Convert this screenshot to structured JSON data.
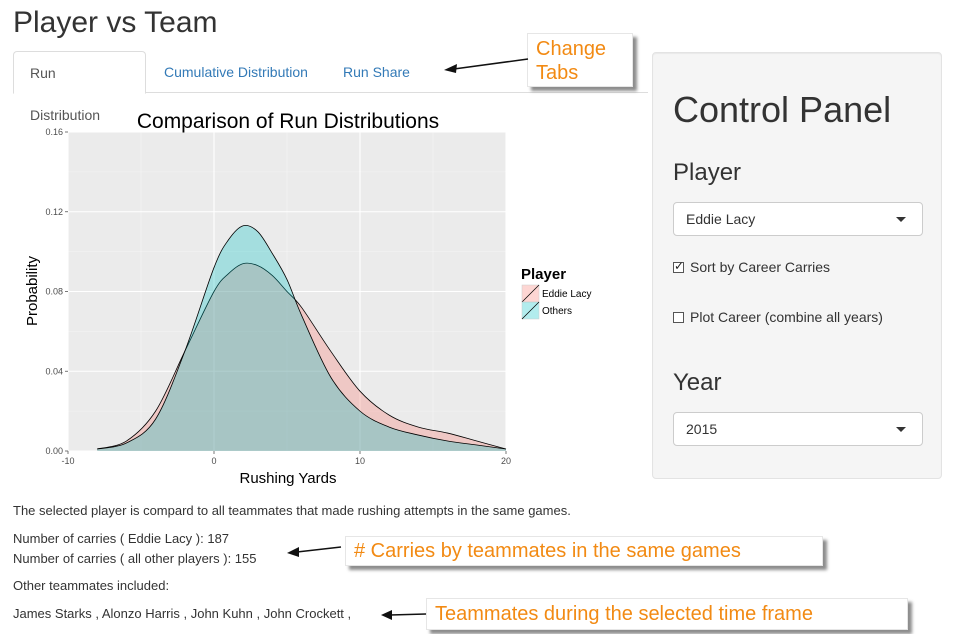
{
  "page": {
    "title": "Player vs Team"
  },
  "tabs": [
    {
      "label": "Run Distribution",
      "active": true
    },
    {
      "label": "Cumulative Distribution",
      "active": false
    },
    {
      "label": "Run Share",
      "active": false
    }
  ],
  "chart_data": {
    "type": "area",
    "title": "Comparison of Run Distributions",
    "xlabel": "Rushing Yards",
    "ylabel": "Probability",
    "xlim": [
      -10,
      20
    ],
    "ylim": [
      0,
      0.16
    ],
    "xticks": [
      "-10",
      "0",
      "10",
      "20"
    ],
    "yticks": [
      "0.00",
      "0.04",
      "0.08",
      "0.12",
      "0.16"
    ],
    "grid": true,
    "legend": {
      "title": "Player",
      "placement": "right"
    },
    "series": [
      {
        "name": "Eddie Lacy",
        "color": "#f8766d",
        "x": [
          -8,
          -6,
          -4,
          -2,
          0,
          1,
          2,
          3,
          4,
          5,
          6,
          8,
          10,
          12,
          14,
          16,
          18,
          20
        ],
        "y": [
          0.001,
          0.005,
          0.02,
          0.05,
          0.08,
          0.089,
          0.094,
          0.093,
          0.088,
          0.08,
          0.072,
          0.05,
          0.03,
          0.018,
          0.012,
          0.009,
          0.005,
          0.001
        ]
      },
      {
        "name": "Others",
        "color": "#00bfc4",
        "x": [
          -8,
          -6,
          -4,
          -2,
          0,
          1,
          2,
          3,
          4,
          5,
          6,
          8,
          10,
          12,
          14,
          16,
          18,
          20
        ],
        "y": [
          0.001,
          0.004,
          0.016,
          0.05,
          0.092,
          0.106,
          0.113,
          0.11,
          0.099,
          0.086,
          0.068,
          0.037,
          0.02,
          0.012,
          0.008,
          0.005,
          0.003,
          0.001
        ]
      }
    ]
  },
  "summary": {
    "intro": "The selected player is compard to all teammates that made rushing attempts in the same games.",
    "carries_player": "Number of carries ( Eddie Lacy ): 187",
    "carries_others": "Number of carries ( all other players ): 155",
    "teammates_heading": "Other teammates included:",
    "teammates_list": "James Starks , Alonzo Harris , John Kuhn , John Crockett ,"
  },
  "annotations": {
    "change_tabs_line1": "Change",
    "change_tabs_line2": "Tabs",
    "carries_note": "# Carries by teammates in the same games",
    "teammates_note": "Teammates during the selected time frame",
    "color": "#f28a13"
  },
  "control_panel": {
    "title": "Control Panel",
    "player_label": "Player",
    "player_value": "Eddie Lacy",
    "sort_label": "Sort by Career Carries",
    "sort_checked": true,
    "career_label": "Plot Career (combine all years)",
    "career_checked": false,
    "year_label": "Year",
    "year_value": "2015"
  }
}
